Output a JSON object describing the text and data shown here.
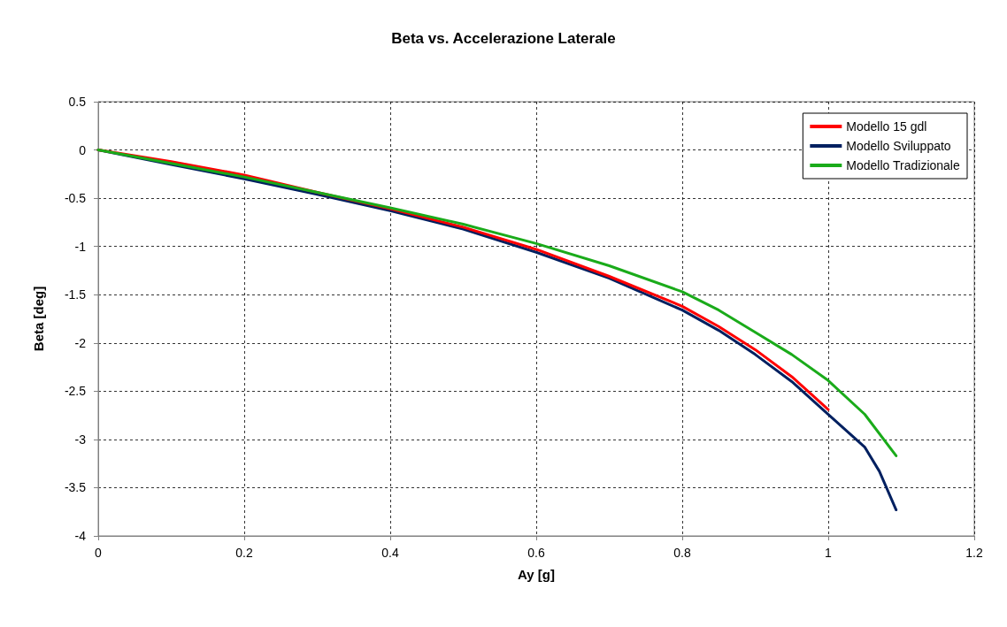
{
  "chart_data": {
    "type": "line",
    "title": "Beta vs. Accelerazione Laterale",
    "xlabel": "Ay [g]",
    "ylabel": "Beta [deg]",
    "xlim": [
      0,
      1.2
    ],
    "xticks": [
      0,
      0.2,
      0.4,
      0.6,
      0.8,
      1,
      1.2
    ],
    "ylim": [
      -4,
      0.5
    ],
    "yticks": [
      -4,
      -3.5,
      -3,
      -2.5,
      -2,
      -1.5,
      -1,
      -0.5,
      0,
      0.5
    ],
    "grid": true,
    "legend": "top right",
    "marker": "none",
    "line_style": "solid",
    "series": [
      {
        "name": "Modello 15 gdl",
        "color": "#ff0000",
        "x": [
          0,
          0.1,
          0.2,
          0.3,
          0.4,
          0.5,
          0.6,
          0.7,
          0.8,
          0.85,
          0.9,
          0.95,
          1.0
        ],
        "values": [
          0,
          -0.12,
          -0.26,
          -0.44,
          -0.61,
          -0.8,
          -1.03,
          -1.31,
          -1.62,
          -1.83,
          -2.07,
          -2.35,
          -2.69
        ]
      },
      {
        "name": "Modello Sviluppato",
        "color": "#002060",
        "x": [
          0,
          0.1,
          0.2,
          0.3,
          0.4,
          0.5,
          0.6,
          0.7,
          0.8,
          0.85,
          0.9,
          0.95,
          1.0,
          1.05,
          1.07,
          1.093
        ],
        "values": [
          0,
          -0.15,
          -0.3,
          -0.46,
          -0.63,
          -0.82,
          -1.06,
          -1.33,
          -1.66,
          -1.87,
          -2.12,
          -2.4,
          -2.74,
          -3.08,
          -3.33,
          -3.73
        ]
      },
      {
        "name": "Modello Tradizionale",
        "color": "#1aab1a",
        "x": [
          0,
          0.1,
          0.2,
          0.3,
          0.4,
          0.5,
          0.6,
          0.7,
          0.8,
          0.85,
          0.9,
          0.95,
          1.0,
          1.05,
          1.093
        ],
        "values": [
          0,
          -0.14,
          -0.28,
          -0.44,
          -0.6,
          -0.77,
          -0.97,
          -1.2,
          -1.47,
          -1.66,
          -1.89,
          -2.12,
          -2.39,
          -2.74,
          -3.17
        ]
      }
    ]
  }
}
